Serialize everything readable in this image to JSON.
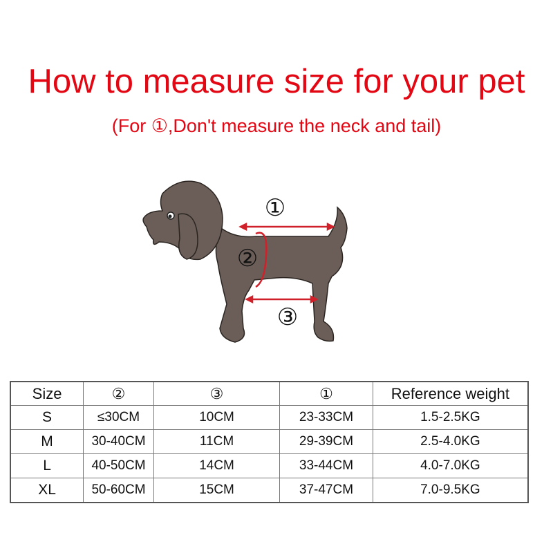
{
  "title": "How to measure size for your pet",
  "subtitle": "(For ①,Don't measure the neck and tail)",
  "diagram": {
    "labels": [
      "①",
      "②",
      "③"
    ],
    "dog_color": "#6b5e58",
    "arrow_color": "#d0202a"
  },
  "table": {
    "headers": [
      "Size",
      "②",
      "③",
      "①",
      "Reference weight"
    ],
    "rows": [
      [
        "S",
        "≤30CM",
        "10CM",
        "23-33CM",
        "1.5-2.5KG"
      ],
      [
        "M",
        "30-40CM",
        "11CM",
        "29-39CM",
        "2.5-4.0KG"
      ],
      [
        "L",
        "40-50CM",
        "14CM",
        "33-44CM",
        "4.0-7.0KG"
      ],
      [
        "XL",
        "50-60CM",
        "15CM",
        "37-47CM",
        "7.0-9.5KG"
      ]
    ]
  }
}
